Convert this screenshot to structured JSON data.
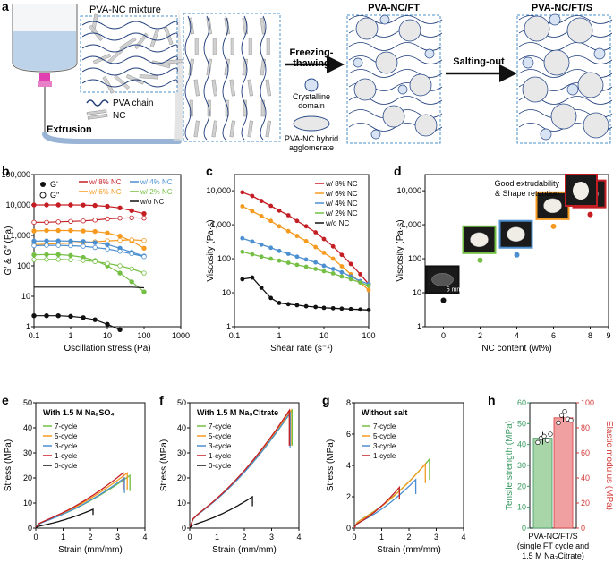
{
  "panel_a": {
    "letter": "a",
    "mixture_label": "PVA-NC mixture",
    "legend_pva": "PVA chain",
    "legend_nc": "NC",
    "extrusion_label": "Extrusion",
    "arrow1_line1": "Freezing-",
    "arrow1_line2": "thawing",
    "crystalline_line1": "Crystalline",
    "crystalline_line2": "domain",
    "hybrid_line1": "PVA-NC hybrid",
    "hybrid_line2": "agglomerate",
    "title_ft": "PVA-NC/FT",
    "arrow2_label": "Salting-out",
    "title_fts": "PVA-NC/FT/S",
    "colors": {
      "box_border": "#4a90c8",
      "chain": "#1f3d7a",
      "nc": "#cfcfcf",
      "arrow": "#111111",
      "nozzle": "#e040b0"
    }
  },
  "chart_data": [
    {
      "panel": "b",
      "type": "scatter-line",
      "xlabel": "Oscillation stress (Pa)",
      "ylabel": "G′ & G″ (Pa)",
      "xscale": "log",
      "yscale": "log",
      "xlim": [
        0.1,
        1000
      ],
      "ylim": [
        1,
        100000
      ],
      "xticks": [
        "0.1",
        "1",
        "10",
        "100",
        "1000"
      ],
      "yticks": [
        "1",
        "10",
        "100",
        "1,000",
        "10,000",
        "100,000"
      ],
      "legend_markers": [
        {
          "label": "G′",
          "filled": true
        },
        {
          "label": "G″",
          "filled": false
        }
      ],
      "series": [
        {
          "name": "w/ 8% NC",
          "color": "#c41e24",
          "Gp": [
            10000,
            10000,
            10000,
            10000,
            9900,
            9600,
            9000,
            8000,
            6500,
            5200
          ],
          "Gpp": [
            2700,
            2700,
            2800,
            2900,
            3000,
            3200,
            3500,
            3700,
            3800,
            3700
          ]
        },
        {
          "name": "w/ 6% NC",
          "color": "#f59a1f",
          "Gp": [
            1400,
            1450,
            1450,
            1450,
            1400,
            1350,
            1200,
            950,
            650,
            380
          ],
          "Gpp": [
            500,
            520,
            540,
            560,
            590,
            620,
            660,
            690,
            720,
            680
          ]
        },
        {
          "name": "w/ 4% NC",
          "color": "#4b8fd0",
          "Gp": [
            650,
            660,
            660,
            650,
            630,
            580,
            500,
            380,
            280,
            210
          ],
          "Gpp": [
            460,
            470,
            470,
            460,
            440,
            400,
            360,
            300,
            250,
            200
          ]
        },
        {
          "name": "w/ 2% NC",
          "color": "#74bf44",
          "Gp": [
            230,
            235,
            235,
            220,
            190,
            150,
            100,
            58,
            30,
            14
          ],
          "Gpp": [
            160,
            162,
            162,
            158,
            150,
            138,
            120,
            100,
            80,
            58
          ]
        },
        {
          "name": "w/o NC",
          "color": "#111111",
          "Gp": [
            2.3,
            2.3,
            2.3,
            2.2,
            2.0,
            1.7,
            1.2,
            0.8,
            null,
            null
          ],
          "Gpp": [
            20,
            20,
            20,
            20,
            20,
            20,
            20,
            20,
            20,
            19
          ]
        }
      ],
      "x": [
        0.1,
        0.22,
        0.46,
        1,
        2.2,
        4.6,
        10,
        22,
        46,
        100
      ]
    },
    {
      "panel": "c",
      "type": "scatter-line",
      "xlabel": "Shear rate (s⁻¹)",
      "ylabel": "Viscosity (Pa·s)",
      "xscale": "log",
      "yscale": "log",
      "xlim": [
        0.1,
        100
      ],
      "ylim": [
        1,
        30000
      ],
      "xticks": [
        "0.1",
        "1",
        "10",
        "100"
      ],
      "yticks": [
        "1",
        "10",
        "100",
        "1,000",
        "10,000"
      ],
      "x": [
        0.15,
        0.25,
        0.4,
        0.65,
        1,
        1.6,
        2.5,
        4,
        6.5,
        10,
        16,
        25,
        40,
        65,
        100
      ],
      "series": [
        {
          "name": "w/ 8% NC",
          "color": "#c41e24",
          "values": [
            9000,
            7000,
            5000,
            3600,
            2600,
            1900,
            1300,
            900,
            600,
            380,
            230,
            130,
            70,
            35,
            18
          ]
        },
        {
          "name": "w/ 6% NC",
          "color": "#f59a1f",
          "values": [
            3500,
            2500,
            1800,
            1300,
            900,
            650,
            470,
            330,
            220,
            150,
            100,
            60,
            35,
            20,
            12
          ]
        },
        {
          "name": "w/ 4% NC",
          "color": "#4b8fd0",
          "values": [
            400,
            320,
            260,
            210,
            170,
            140,
            115,
            95,
            78,
            62,
            50,
            40,
            30,
            22,
            18
          ]
        },
        {
          "name": "w/ 2% NC",
          "color": "#74bf44",
          "values": [
            160,
            135,
            115,
            100,
            88,
            76,
            66,
            58,
            50,
            43,
            37,
            30,
            25,
            20,
            16
          ]
        },
        {
          "name": "w/o NC",
          "color": "#111111",
          "values": [
            25,
            28,
            14,
            7,
            5,
            4.6,
            4.3,
            4,
            3.8,
            3.6,
            3.5,
            3.4,
            3.3,
            3.2,
            3.1
          ]
        }
      ]
    },
    {
      "panel": "d",
      "type": "scatter",
      "xlabel": "NC content (wt%)",
      "ylabel": "Viscosity (Pa·s)",
      "xlim": [
        -1,
        9
      ],
      "ylim": [
        1,
        30000
      ],
      "yscale": "log",
      "xticks": [
        "0",
        "2",
        "4",
        "6",
        "8",
        "9"
      ],
      "yticks": [
        "1",
        "10",
        "100",
        "1,000",
        "10,000"
      ],
      "x": [
        0,
        2,
        4,
        6,
        8
      ],
      "values": [
        6,
        90,
        130,
        900,
        2000
      ],
      "colors": [
        "#111111",
        "#74bf44",
        "#4b8fd0",
        "#f59a1f",
        "#c41e24"
      ],
      "annotation_line1": "Good extrudability",
      "annotation_line2": "& Shape retention",
      "scale_label": "5 mm"
    },
    {
      "panel": "e",
      "type": "line",
      "title": "With 1.5 M Na₂SO₄",
      "xlabel": "Strain (mm/mm)",
      "ylabel": "Stress (MPa)",
      "xlim": [
        0,
        4
      ],
      "ylim": [
        0,
        50
      ],
      "xticks": [
        "0",
        "1",
        "2",
        "3",
        "4"
      ],
      "yticks": [
        "0",
        "10",
        "20",
        "30",
        "40",
        "50"
      ],
      "series": [
        {
          "name": "7-cycle",
          "color": "#74bf44",
          "end_strain": 3.45,
          "end_stress": 21
        },
        {
          "name": "5-cycle",
          "color": "#f59a1f",
          "end_strain": 3.35,
          "end_stress": 22
        },
        {
          "name": "3-cycle",
          "color": "#4b8fd0",
          "end_strain": 3.25,
          "end_stress": 20
        },
        {
          "name": "1-cycle",
          "color": "#c41e24",
          "end_strain": 3.2,
          "end_stress": 22
        },
        {
          "name": "0-cycle",
          "color": "#111111",
          "end_strain": 2.1,
          "end_stress": 7.5
        }
      ]
    },
    {
      "panel": "f",
      "type": "line",
      "title": "With 1.5 M Na₃Citrate",
      "xlabel": "Strain (mm/mm)",
      "ylabel": "Stress (MPa)",
      "xlim": [
        0,
        4
      ],
      "ylim": [
        0,
        50
      ],
      "xticks": [
        "0",
        "1",
        "2",
        "3",
        "4"
      ],
      "yticks": [
        "0",
        "10",
        "20",
        "30",
        "40",
        "50"
      ],
      "series": [
        {
          "name": "7-cycle",
          "color": "#74bf44",
          "end_strain": 3.75,
          "end_stress": 47
        },
        {
          "name": "5-cycle",
          "color": "#f59a1f",
          "end_strain": 3.7,
          "end_stress": 47
        },
        {
          "name": "3-cycle",
          "color": "#4b8fd0",
          "end_strain": 3.68,
          "end_stress": 46
        },
        {
          "name": "1-cycle",
          "color": "#c41e24",
          "end_strain": 3.65,
          "end_stress": 47
        },
        {
          "name": "0-cycle",
          "color": "#111111",
          "end_strain": 2.3,
          "end_stress": 12.5
        }
      ]
    },
    {
      "panel": "g",
      "type": "line",
      "title": "Without salt",
      "xlabel": "Strain (mm/mm)",
      "ylabel": "Stress (MPa)",
      "xlim": [
        0,
        4
      ],
      "ylim": [
        0,
        8
      ],
      "xticks": [
        "0",
        "1",
        "2",
        "3",
        "4"
      ],
      "yticks": [
        "0",
        "2",
        "4",
        "6",
        "8"
      ],
      "series": [
        {
          "name": "7-cycle",
          "color": "#74bf44",
          "end_strain": 2.75,
          "end_stress": 4.4
        },
        {
          "name": "5-cycle",
          "color": "#f59a1f",
          "end_strain": 2.6,
          "end_stress": 4.1
        },
        {
          "name": "3-cycle",
          "color": "#4b8fd0",
          "end_strain": 2.25,
          "end_stress": 3.1
        },
        {
          "name": "1-cycle",
          "color": "#c41e24",
          "end_strain": 1.65,
          "end_stress": 2.6
        }
      ]
    },
    {
      "panel": "h",
      "type": "bar",
      "ylabel_left": "Tensile strength (MPa)",
      "ylabel_right": "Elastic modulus (MPa)",
      "ylim_left": [
        0,
        60
      ],
      "ylim_right": [
        0,
        100
      ],
      "yticks_left": [
        "0",
        "10",
        "20",
        "30",
        "40",
        "50",
        "60"
      ],
      "yticks_right": [
        "0",
        "20",
        "40",
        "60",
        "80",
        "100"
      ],
      "bars": [
        {
          "name": "Tensile strength",
          "value": 43,
          "axis": "left",
          "color": "#a9d6a9",
          "points": [
            41,
            43,
            44,
            42,
            45
          ]
        },
        {
          "name": "Elastic modulus",
          "value": 88,
          "axis": "right",
          "color": "#f0a0a0",
          "points": [
            84,
            90,
            93,
            87,
            86
          ]
        }
      ],
      "xlabel_line1": "PVA-NC/FT/S",
      "xlabel_line2": "(single FT cycle and",
      "xlabel_line3": "1.5 M Na₃Citrate)",
      "left_color": "#3a9a63",
      "right_color": "#d43a3a"
    }
  ]
}
